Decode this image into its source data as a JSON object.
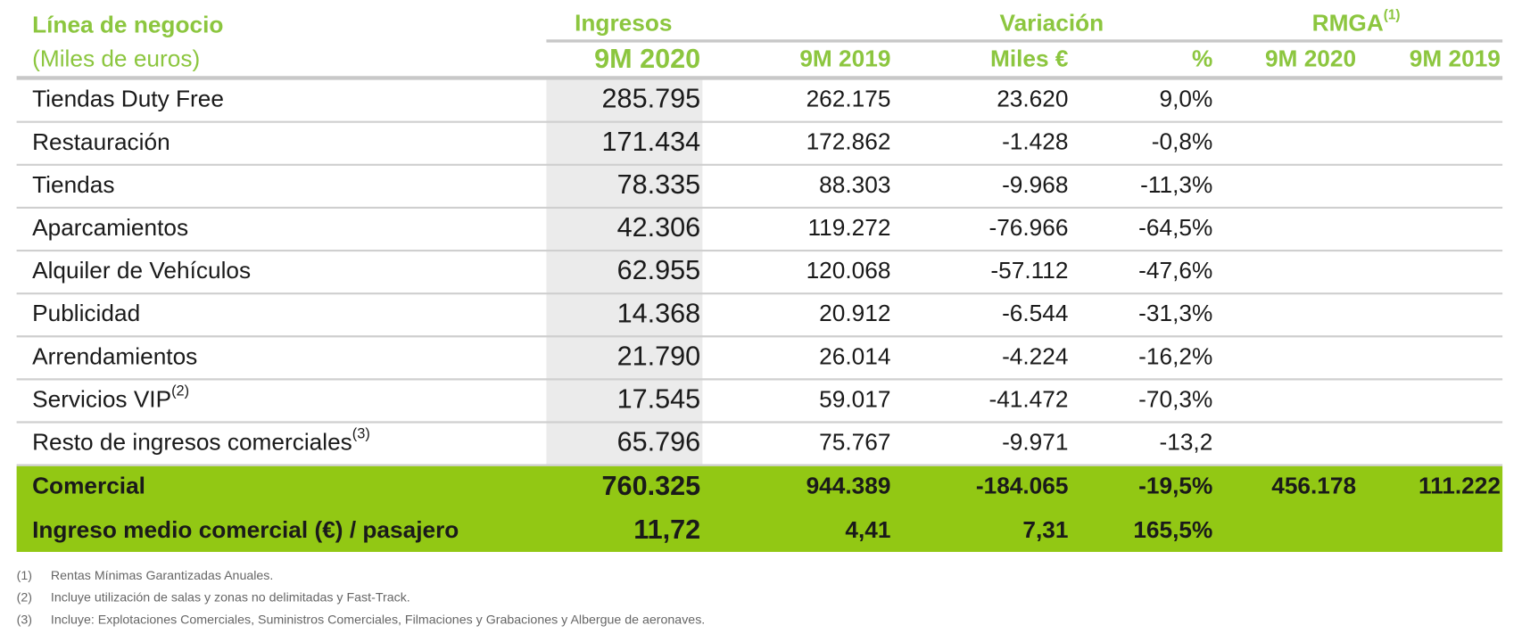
{
  "header": {
    "title": "Línea de negocio",
    "subtitle": "(Miles de euros)",
    "groups": [
      {
        "label": "Ingresos"
      },
      {
        "label": "Variación"
      },
      {
        "label": "RMGA",
        "note": "(1)"
      }
    ],
    "columns": [
      "9M 2020",
      "9M 2019",
      "Miles €",
      "%",
      "9M 2020",
      "9M 2019"
    ]
  },
  "rows": [
    {
      "label": "Tiendas Duty Free",
      "cells": [
        "285.795",
        "262.175",
        "23.620",
        "9,0%"
      ]
    },
    {
      "label": "Restauración",
      "cells": [
        "171.434",
        "172.862",
        "-1.428",
        "-0,8%"
      ]
    },
    {
      "label": "Tiendas",
      "cells": [
        "78.335",
        "88.303",
        "-9.968",
        "-11,3%"
      ]
    },
    {
      "label": "Aparcamientos",
      "cells": [
        "42.306",
        "119.272",
        "-76.966",
        "-64,5%"
      ]
    },
    {
      "label": "Alquiler de Vehículos",
      "cells": [
        "62.955",
        "120.068",
        "-57.112",
        "-47,6%"
      ]
    },
    {
      "label": "Publicidad",
      "cells": [
        "14.368",
        "20.912",
        "-6.544",
        "-31,3%"
      ]
    },
    {
      "label": "Arrendamientos",
      "cells": [
        "21.790",
        "26.014",
        "-4.224",
        "-16,2%"
      ]
    },
    {
      "label": "Servicios VIP",
      "note": "(2)",
      "cells": [
        "17.545",
        "59.017",
        "-41.472",
        "-70,3%"
      ]
    },
    {
      "label": "Resto de ingresos comerciales",
      "note": "(3)",
      "cells": [
        "65.796",
        "75.767",
        "-9.971",
        "-13,2"
      ]
    }
  ],
  "totals": [
    {
      "label": "Comercial",
      "cells": [
        "760.325",
        "944.389",
        "-184.065",
        "-19,5%",
        "456.178",
        "111.222"
      ]
    },
    {
      "label": "Ingreso medio comercial (€) / pasajero",
      "cells": [
        "11,72",
        "4,41",
        "7,31",
        "165,5%"
      ]
    }
  ],
  "footnotes": [
    {
      "marker": "(1)",
      "text": "Rentas Mínimas Garantizadas Anuales."
    },
    {
      "marker": "(2)",
      "text": "Incluye utilización de salas y zonas no delimitadas y Fast-Track."
    },
    {
      "marker": "(3)",
      "text": "Incluye: Explotaciones Comerciales, Suministros Comerciales, Filmaciones y Grabaciones  y Albergue de aeronaves."
    }
  ]
}
